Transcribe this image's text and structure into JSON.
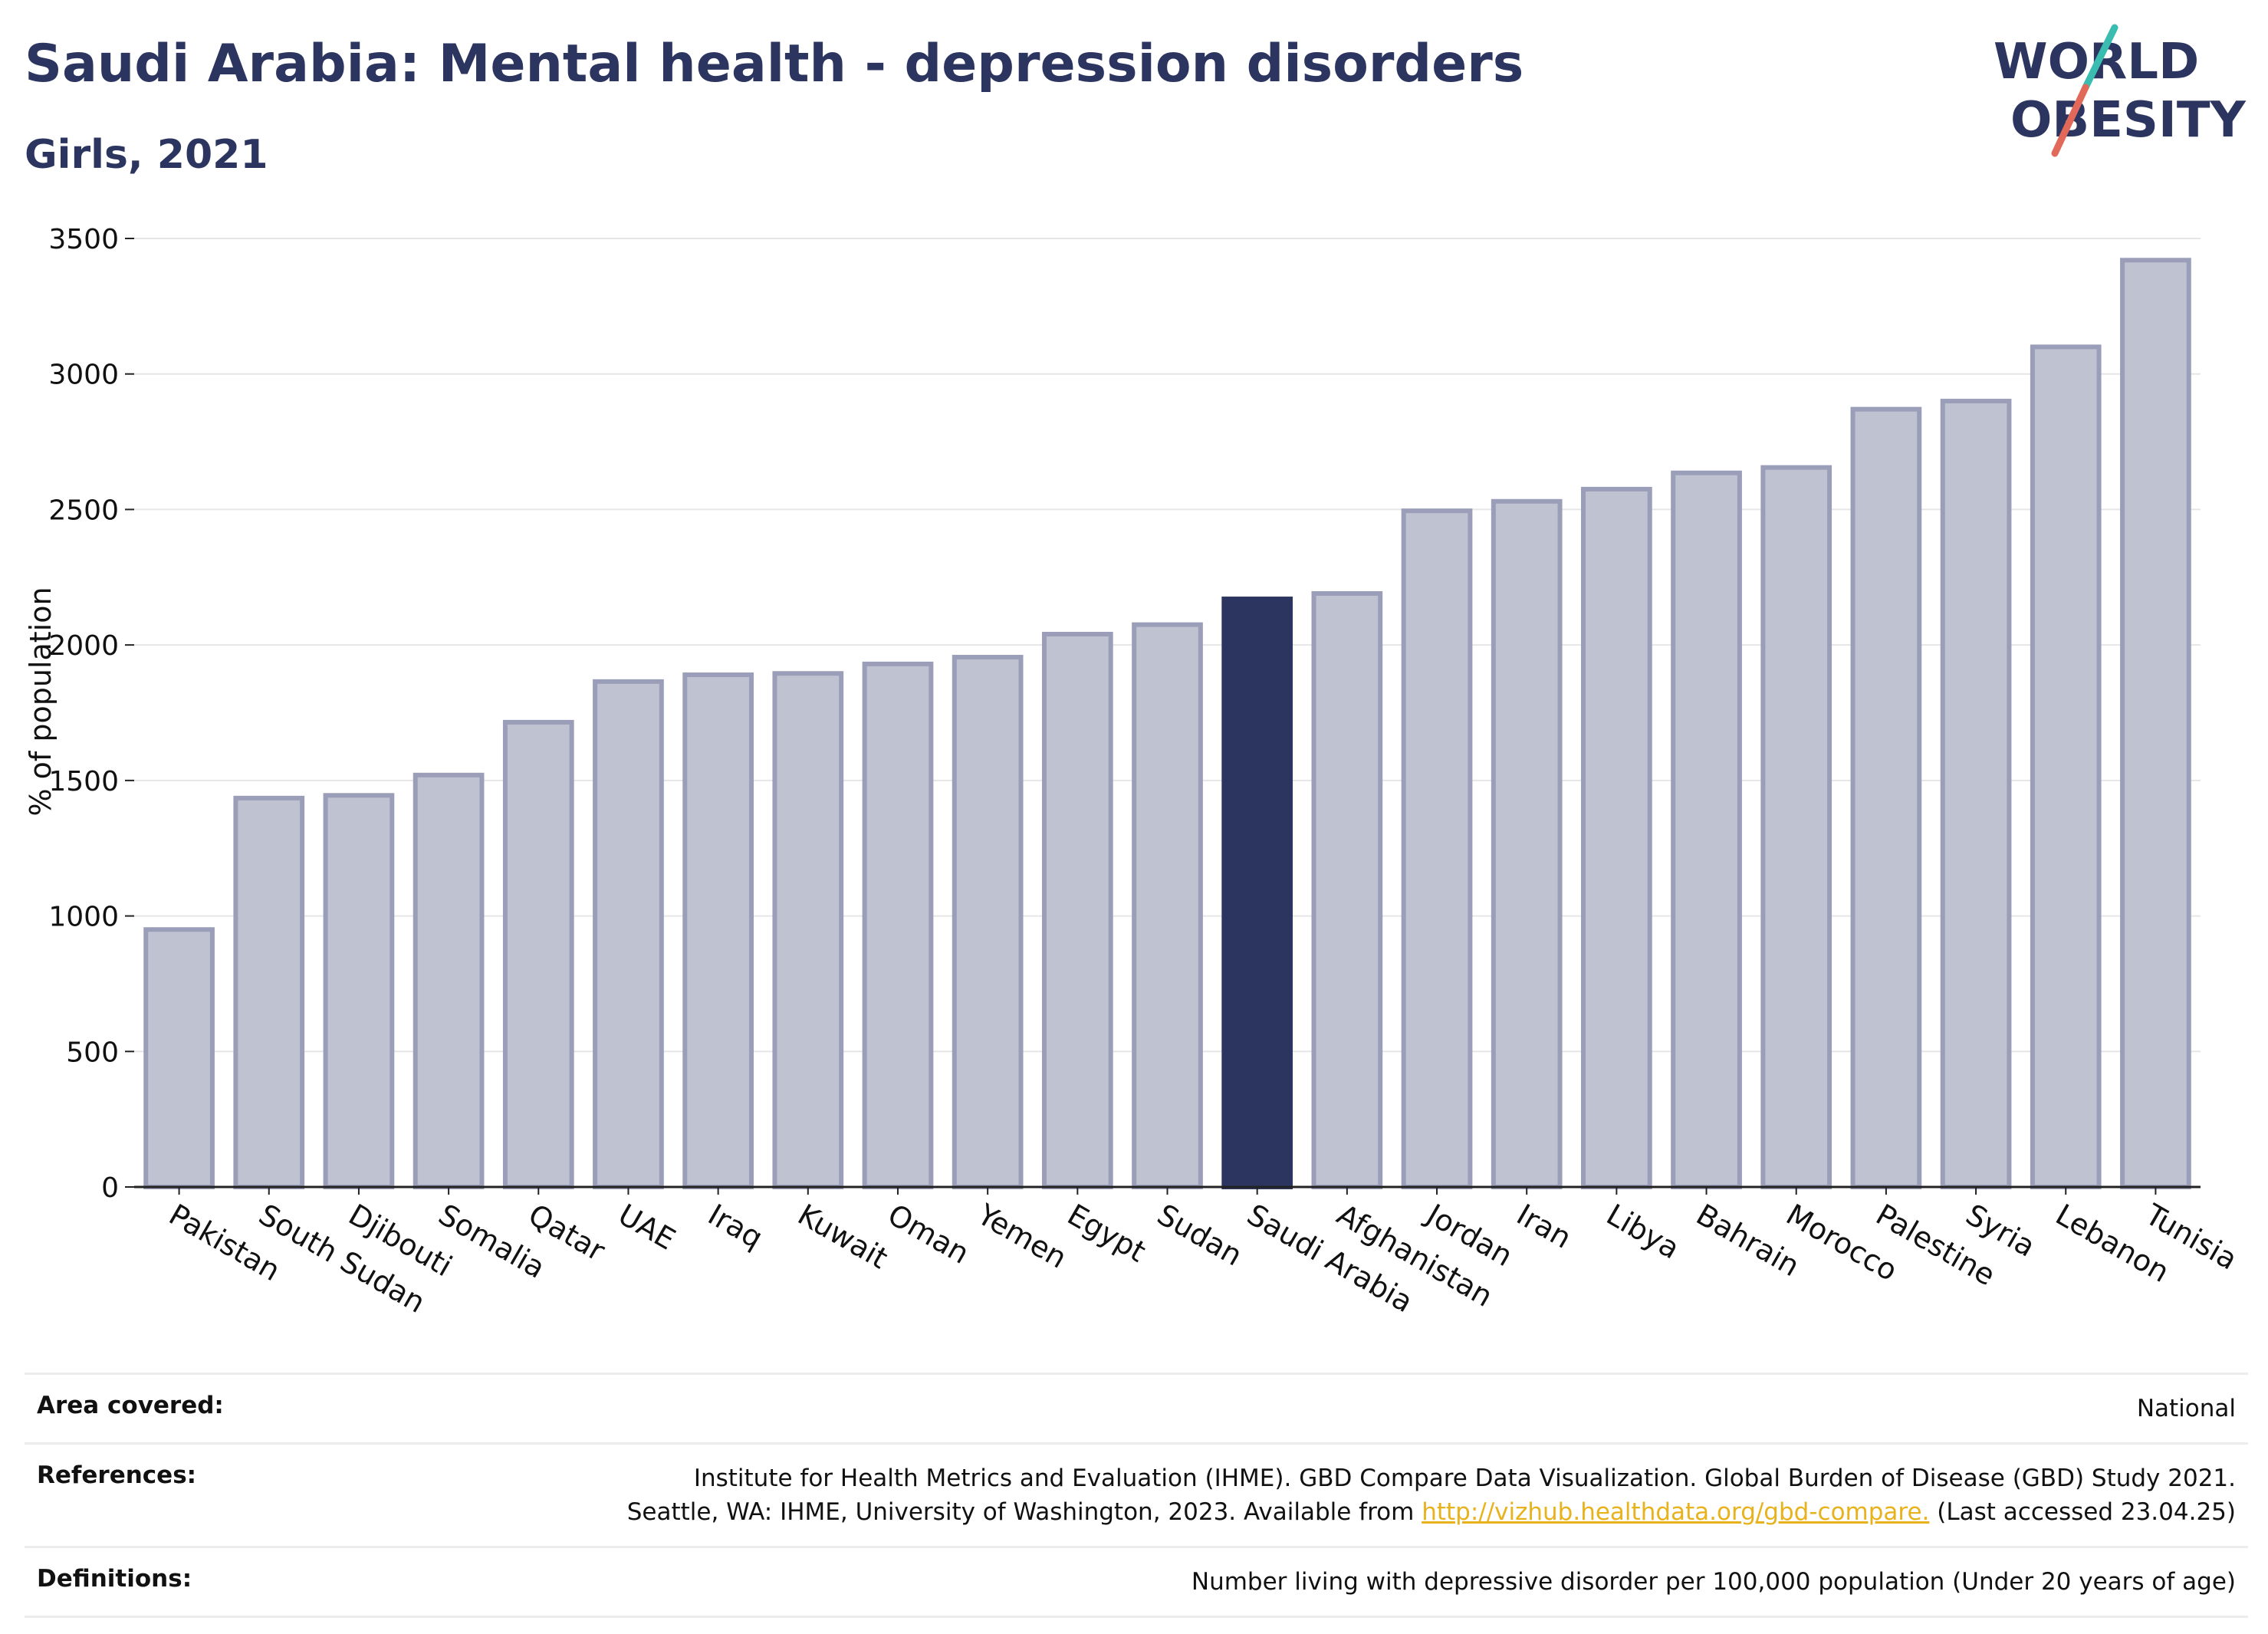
{
  "header": {
    "title": "Saudi Arabia: Mental health - depression disorders",
    "subtitle": "Girls, 2021",
    "logo_line1": "WORLD",
    "logo_line2": "OBESITY"
  },
  "colors": {
    "highlight": "#2b3560",
    "bar_fill": "#bfc2d0",
    "bar_stroke": "#9a9eb8",
    "text": "#2b3560",
    "link": "#e8b21c",
    "logo_teal": "#3bbcb1",
    "logo_red": "#e2695a"
  },
  "chart_data": {
    "type": "bar",
    "title": "",
    "xlabel": "",
    "ylabel": "% of population",
    "ylim": [
      0,
      3500
    ],
    "yticks": [
      0,
      500,
      1000,
      1500,
      2000,
      2500,
      3000,
      3500
    ],
    "grid": true,
    "highlight": "Saudi Arabia",
    "categories": [
      "Pakistan",
      "South Sudan",
      "Djibouti",
      "Somalia",
      "Qatar",
      "UAE",
      "Iraq",
      "Kuwait",
      "Oman",
      "Yemen",
      "Egypt",
      "Sudan",
      "Saudi Arabia",
      "Afghanistan",
      "Jordan",
      "Iran",
      "Libya",
      "Bahrain",
      "Morocco",
      "Palestine",
      "Syria",
      "Lebanon",
      "Tunisia"
    ],
    "values": [
      950,
      1435,
      1445,
      1520,
      1715,
      1865,
      1890,
      1895,
      1930,
      1955,
      2040,
      2075,
      2170,
      2190,
      2495,
      2530,
      2575,
      2635,
      2655,
      2870,
      2900,
      3100,
      3420
    ]
  },
  "footer": {
    "area_label": "Area covered:",
    "area_value": "National",
    "references_label": "References:",
    "references_line1": "Institute for Health Metrics and Evaluation (IHME). GBD Compare Data Visualization. Global Burden of Disease (GBD) Study 2021.",
    "references_line2_pre": "Seattle, WA: IHME, University of Washington, 2023. Available from ",
    "references_link": "http://vizhub.healthdata.org/gbd-compare.",
    "references_line2_post": " (Last accessed 23.04.25)",
    "definitions_label": "Definitions:",
    "definitions_value": "Number living with depressive disorder per 100,000 population (Under 20 years of age)"
  }
}
